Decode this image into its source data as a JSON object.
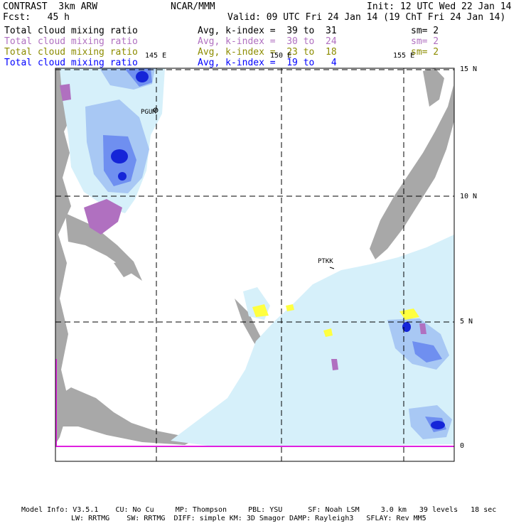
{
  "header": {
    "model_title": "CONTRAST  3km ARW",
    "center": "NCAR/MMM",
    "init": "Init: 12 UTC Wed 22 Jan 14",
    "fcst": "Fcst:   45 h",
    "valid": "Valid: 09 UTC Fri 24 Jan 14 (19 ChT Fri 24 Jan 14)"
  },
  "fields": [
    {
      "name": "Total cloud mixing ratio",
      "range": "Avg, k-index =  39 to  31",
      "sm": "sm= 2",
      "color": "#000000"
    },
    {
      "name": "Total cloud mixing ratio",
      "range": "Avg, k-index =  30 to  24",
      "sm": "sm= 2",
      "color": "#b070c0"
    },
    {
      "name": "Total cloud mixing ratio",
      "range": "Avg, k-index =  23 to  18",
      "sm": "sm= 2",
      "color": "#8c8c00"
    },
    {
      "name": "Total cloud mixing ratio",
      "range": "Avg, k-index =  19 to   4",
      "sm": "sm= 2",
      "color": "#0000ff"
    }
  ],
  "map": {
    "lon_labels": [
      "145 E",
      "150 E",
      "155 E"
    ],
    "lat_labels": [
      "15 N",
      "10 N",
      "5 N",
      "0"
    ],
    "stations": [
      "PGUM",
      "PTKK"
    ],
    "colors": {
      "land": "#a8a8a8",
      "cloud_light": "#d6f0fa",
      "cloud_mid": "#a8c8f4",
      "cloud_blue": "#6f8ff0",
      "cloud_dark": "#1525d8",
      "purple": "#b070c0",
      "yellow": "#ffff40",
      "magenta": "#e020e0"
    }
  },
  "footer": {
    "line1": "Model Info: V3.5.1    CU: No Cu     MP: Thompson     PBL: YSU      SF: Noah LSM     3.0 km   39 levels   18 sec",
    "line2": "LW: RRTMG    SW: RRTMG  DIFF: simple KM: 3D Smagor DAMP: Rayleigh3   SFLAY: Rev MM5"
  }
}
